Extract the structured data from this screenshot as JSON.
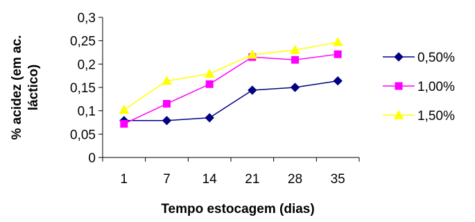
{
  "chart_data": {
    "type": "line",
    "x": [
      "1",
      "7",
      "14",
      "21",
      "28",
      "35"
    ],
    "xlabel": "Tempo estocagem (dias)",
    "ylabel_lines": [
      "% acidez (em ac.",
      "láctico)"
    ],
    "ylim": [
      0,
      0.3
    ],
    "yticks": [
      0,
      0.05,
      0.1,
      0.15,
      0.2,
      0.25,
      0.3
    ],
    "ytick_labels": [
      "0",
      "0,05",
      "0,1",
      "0,15",
      "0,2",
      "0,25",
      "0,3"
    ],
    "grid": false,
    "legend_position": "right",
    "series": [
      {
        "name": "0,50%",
        "color": "#000080",
        "marker": "diamond",
        "values": [
          0.079,
          0.079,
          0.085,
          0.144,
          0.15,
          0.164
        ]
      },
      {
        "name": "1,00%",
        "color": "#ff00ff",
        "marker": "square",
        "values": [
          0.072,
          0.115,
          0.157,
          0.215,
          0.209,
          0.221
        ]
      },
      {
        "name": "1,50%",
        "color": "#ffff00",
        "marker": "triangle",
        "values": [
          0.102,
          0.164,
          0.179,
          0.22,
          0.23,
          0.247
        ]
      }
    ]
  }
}
